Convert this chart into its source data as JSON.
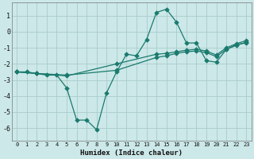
{
  "xlabel": "Humidex (Indice chaleur)",
  "background_color": "#cce8e8",
  "grid_color": "#aacccc",
  "line_color": "#1a7a6e",
  "xlim": [
    -0.5,
    23.5
  ],
  "ylim": [
    -6.8,
    1.8
  ],
  "xticks": [
    0,
    1,
    2,
    3,
    4,
    5,
    6,
    7,
    8,
    9,
    10,
    11,
    12,
    13,
    14,
    15,
    16,
    17,
    18,
    19,
    20,
    21,
    22,
    23
  ],
  "yticks": [
    -6,
    -5,
    -4,
    -3,
    -2,
    -1,
    0,
    1
  ],
  "line1_x": [
    0,
    1,
    2,
    3,
    4,
    5,
    6,
    7,
    8,
    9,
    10,
    11,
    12,
    13,
    14,
    15,
    16,
    17,
    18,
    19,
    20,
    21,
    22,
    23
  ],
  "line1_y": [
    -2.5,
    -2.5,
    -2.6,
    -2.7,
    -2.7,
    -3.5,
    -5.5,
    -5.5,
    -6.1,
    -3.8,
    -2.5,
    -1.4,
    -1.5,
    -0.5,
    1.2,
    1.4,
    0.6,
    -0.7,
    -0.7,
    -1.8,
    -1.9,
    -1.1,
    -0.8,
    -0.7
  ],
  "line2_x": [
    0,
    2,
    5,
    10,
    14,
    15,
    16,
    17,
    18,
    19,
    20,
    21,
    22,
    23
  ],
  "line2_y": [
    -2.5,
    -2.6,
    -2.7,
    -2.4,
    -1.6,
    -1.5,
    -1.35,
    -1.25,
    -1.2,
    -1.3,
    -1.55,
    -1.1,
    -0.85,
    -0.65
  ],
  "line3_x": [
    0,
    2,
    5,
    10,
    14,
    15,
    16,
    17,
    18,
    19,
    20,
    21,
    22,
    23
  ],
  "line3_y": [
    -2.5,
    -2.6,
    -2.75,
    -2.0,
    -1.4,
    -1.35,
    -1.25,
    -1.15,
    -1.1,
    -1.2,
    -1.45,
    -1.0,
    -0.75,
    -0.55
  ]
}
